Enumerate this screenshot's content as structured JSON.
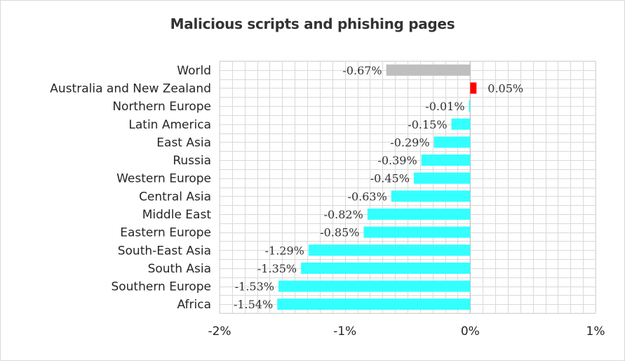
{
  "chart_data": {
    "type": "bar",
    "orientation": "horizontal",
    "title": "Malicious scripts and phishing pages",
    "categories": [
      "World",
      "Australia and New Zealand",
      "Northern Europe",
      "Latin America",
      "East Asia",
      "Russia",
      "Western Europe",
      "Central Asia",
      "Middle East",
      "Eastern Europe",
      "South-East Asia",
      "South Asia",
      "Southern Europe",
      "Africa"
    ],
    "values": [
      -0.67,
      0.05,
      -0.01,
      -0.15,
      -0.29,
      -0.39,
      -0.45,
      -0.63,
      -0.82,
      -0.85,
      -1.29,
      -1.35,
      -1.53,
      -1.54
    ],
    "value_labels": [
      "-0.67%",
      "0.05%",
      "-0.01%",
      "-0.15%",
      "-0.29%",
      "-0.39%",
      "-0.45%",
      "-0.63%",
      "-0.82%",
      "-0.85%",
      "-1.29%",
      "-1.35%",
      "-1.53%",
      "-1.54%"
    ],
    "xlim": [
      -2,
      1
    ],
    "x_ticks": [
      -2,
      -1,
      0,
      1
    ],
    "x_tick_labels": [
      "-2%",
      "-1%",
      "0%",
      "1%"
    ],
    "xlabel": "",
    "ylabel": "",
    "grid": true,
    "legend": "none",
    "colors": {
      "world": "#bfbfbf",
      "positive": "#ff0000",
      "negative": "#33ffff",
      "grid": "#d9d9d9",
      "axis": "#bfbfbf"
    }
  }
}
